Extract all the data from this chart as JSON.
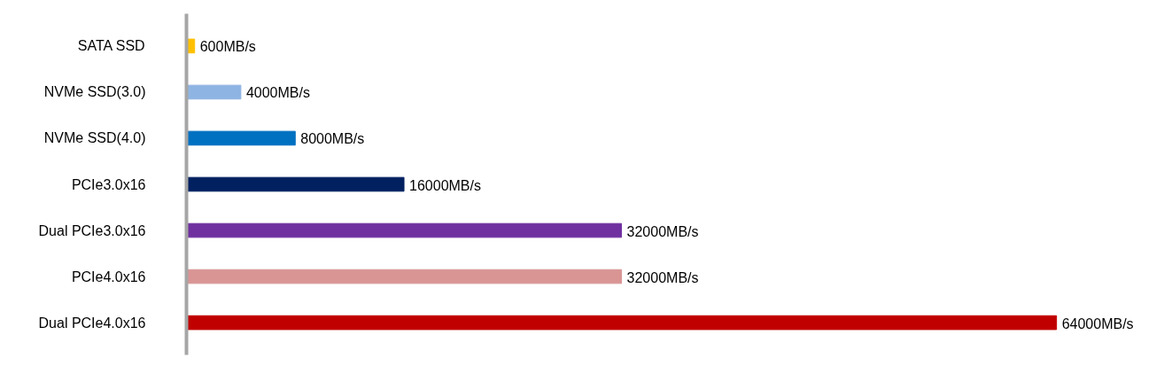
{
  "chart_data": {
    "type": "bar",
    "orientation": "horizontal",
    "categories": [
      "SATA SSD",
      "NVMe SSD(3.0)",
      "NVMe SSD(4.0)",
      "PCIe3.0x16",
      "Dual PCIe3.0x16",
      "PCIe4.0x16",
      "Dual PCIe4.0x16"
    ],
    "values": [
      600,
      4000,
      8000,
      16000,
      32000,
      32000,
      64000
    ],
    "value_labels": [
      "600MB/s",
      "4000MB/s",
      "8000MB/s",
      "16000MB/s",
      "32000MB/s",
      "32000MB/s",
      "64000MB/s"
    ],
    "colors": [
      "#ffc000",
      "#8eb4e3",
      "#0070c0",
      "#002060",
      "#7030a0",
      "#d99594",
      "#c00000"
    ],
    "grid": false
  }
}
